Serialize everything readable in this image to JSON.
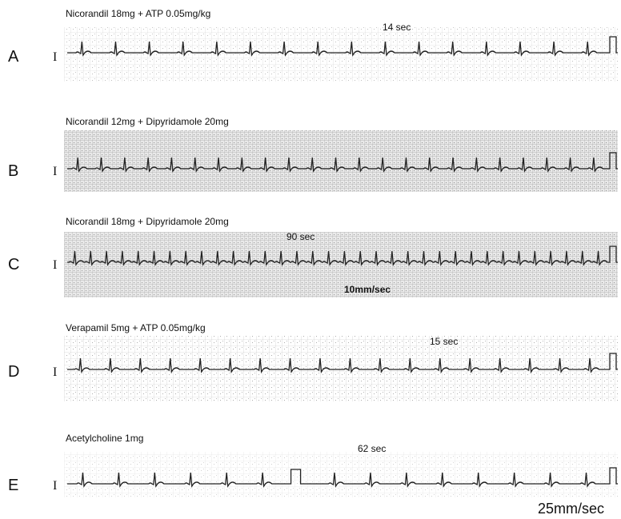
{
  "panels": [
    {
      "letter": "A",
      "title": "Nicorandil 18mg + ATP 0.05mg/kg",
      "lead": "I",
      "annotations": [
        "14 sec"
      ]
    },
    {
      "letter": "B",
      "title": "Nicorandil 12mg + Dipyridamole 20mg",
      "lead": "I",
      "annotations": []
    },
    {
      "letter": "C",
      "title": "Nicorandil 18mg + Dipyridamole 20mg",
      "lead": "I",
      "annotations": [
        "90 sec",
        "10mm/sec"
      ]
    },
    {
      "letter": "D",
      "title": "Verapamil 5mg + ATP 0.05mg/kg",
      "lead": "I",
      "annotations": [
        "15 sec"
      ]
    },
    {
      "letter": "E",
      "title": "Acetylcholine 1mg",
      "lead": "I",
      "annotations": [
        "62 sec"
      ]
    }
  ],
  "footer": "25mm/sec"
}
